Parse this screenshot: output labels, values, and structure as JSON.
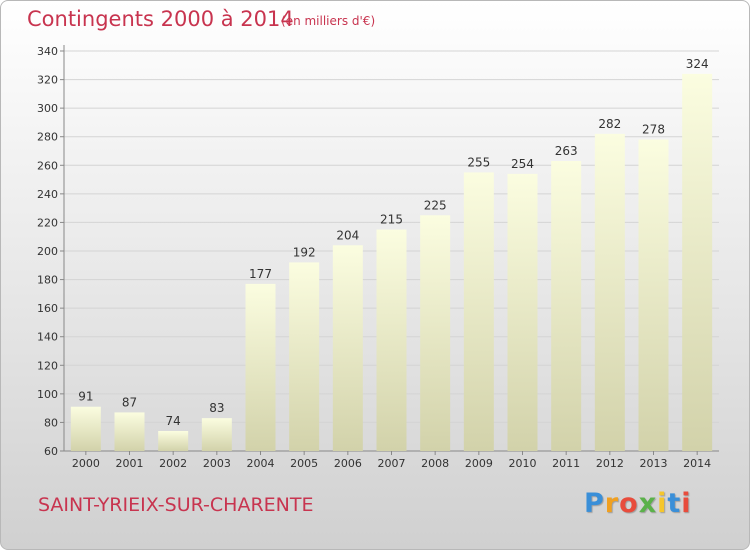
{
  "chart_data": {
    "type": "bar",
    "title": "Contingents 2000 à 2014",
    "subtitle": "(en milliers d'€)",
    "categories": [
      "2000",
      "2001",
      "2002",
      "2003",
      "2004",
      "2005",
      "2006",
      "2007",
      "2008",
      "2009",
      "2010",
      "2011",
      "2012",
      "2013",
      "2014"
    ],
    "values": [
      91,
      87,
      74,
      83,
      177,
      192,
      204,
      215,
      225,
      255,
      254,
      263,
      282,
      278,
      324
    ],
    "ylim": [
      60,
      340
    ],
    "yticks": [
      60,
      80,
      100,
      120,
      140,
      160,
      180,
      200,
      220,
      240,
      260,
      280,
      300,
      320,
      340
    ],
    "grid": true,
    "bar_color_top": "#fbfde0",
    "bar_color_bottom": "#d2d2aa"
  },
  "footer": {
    "commune": "SAINT-YRIEIX-SUR-CHARENTE",
    "logo": {
      "letters": [
        "P",
        "r",
        "o",
        "x",
        "i",
        "t",
        "i"
      ],
      "colors": [
        "#3a8fd8",
        "#f0a020",
        "#e84c3c",
        "#5bb14a",
        "#f5c62c",
        "#3a8fd8",
        "#e84c3c"
      ]
    }
  }
}
